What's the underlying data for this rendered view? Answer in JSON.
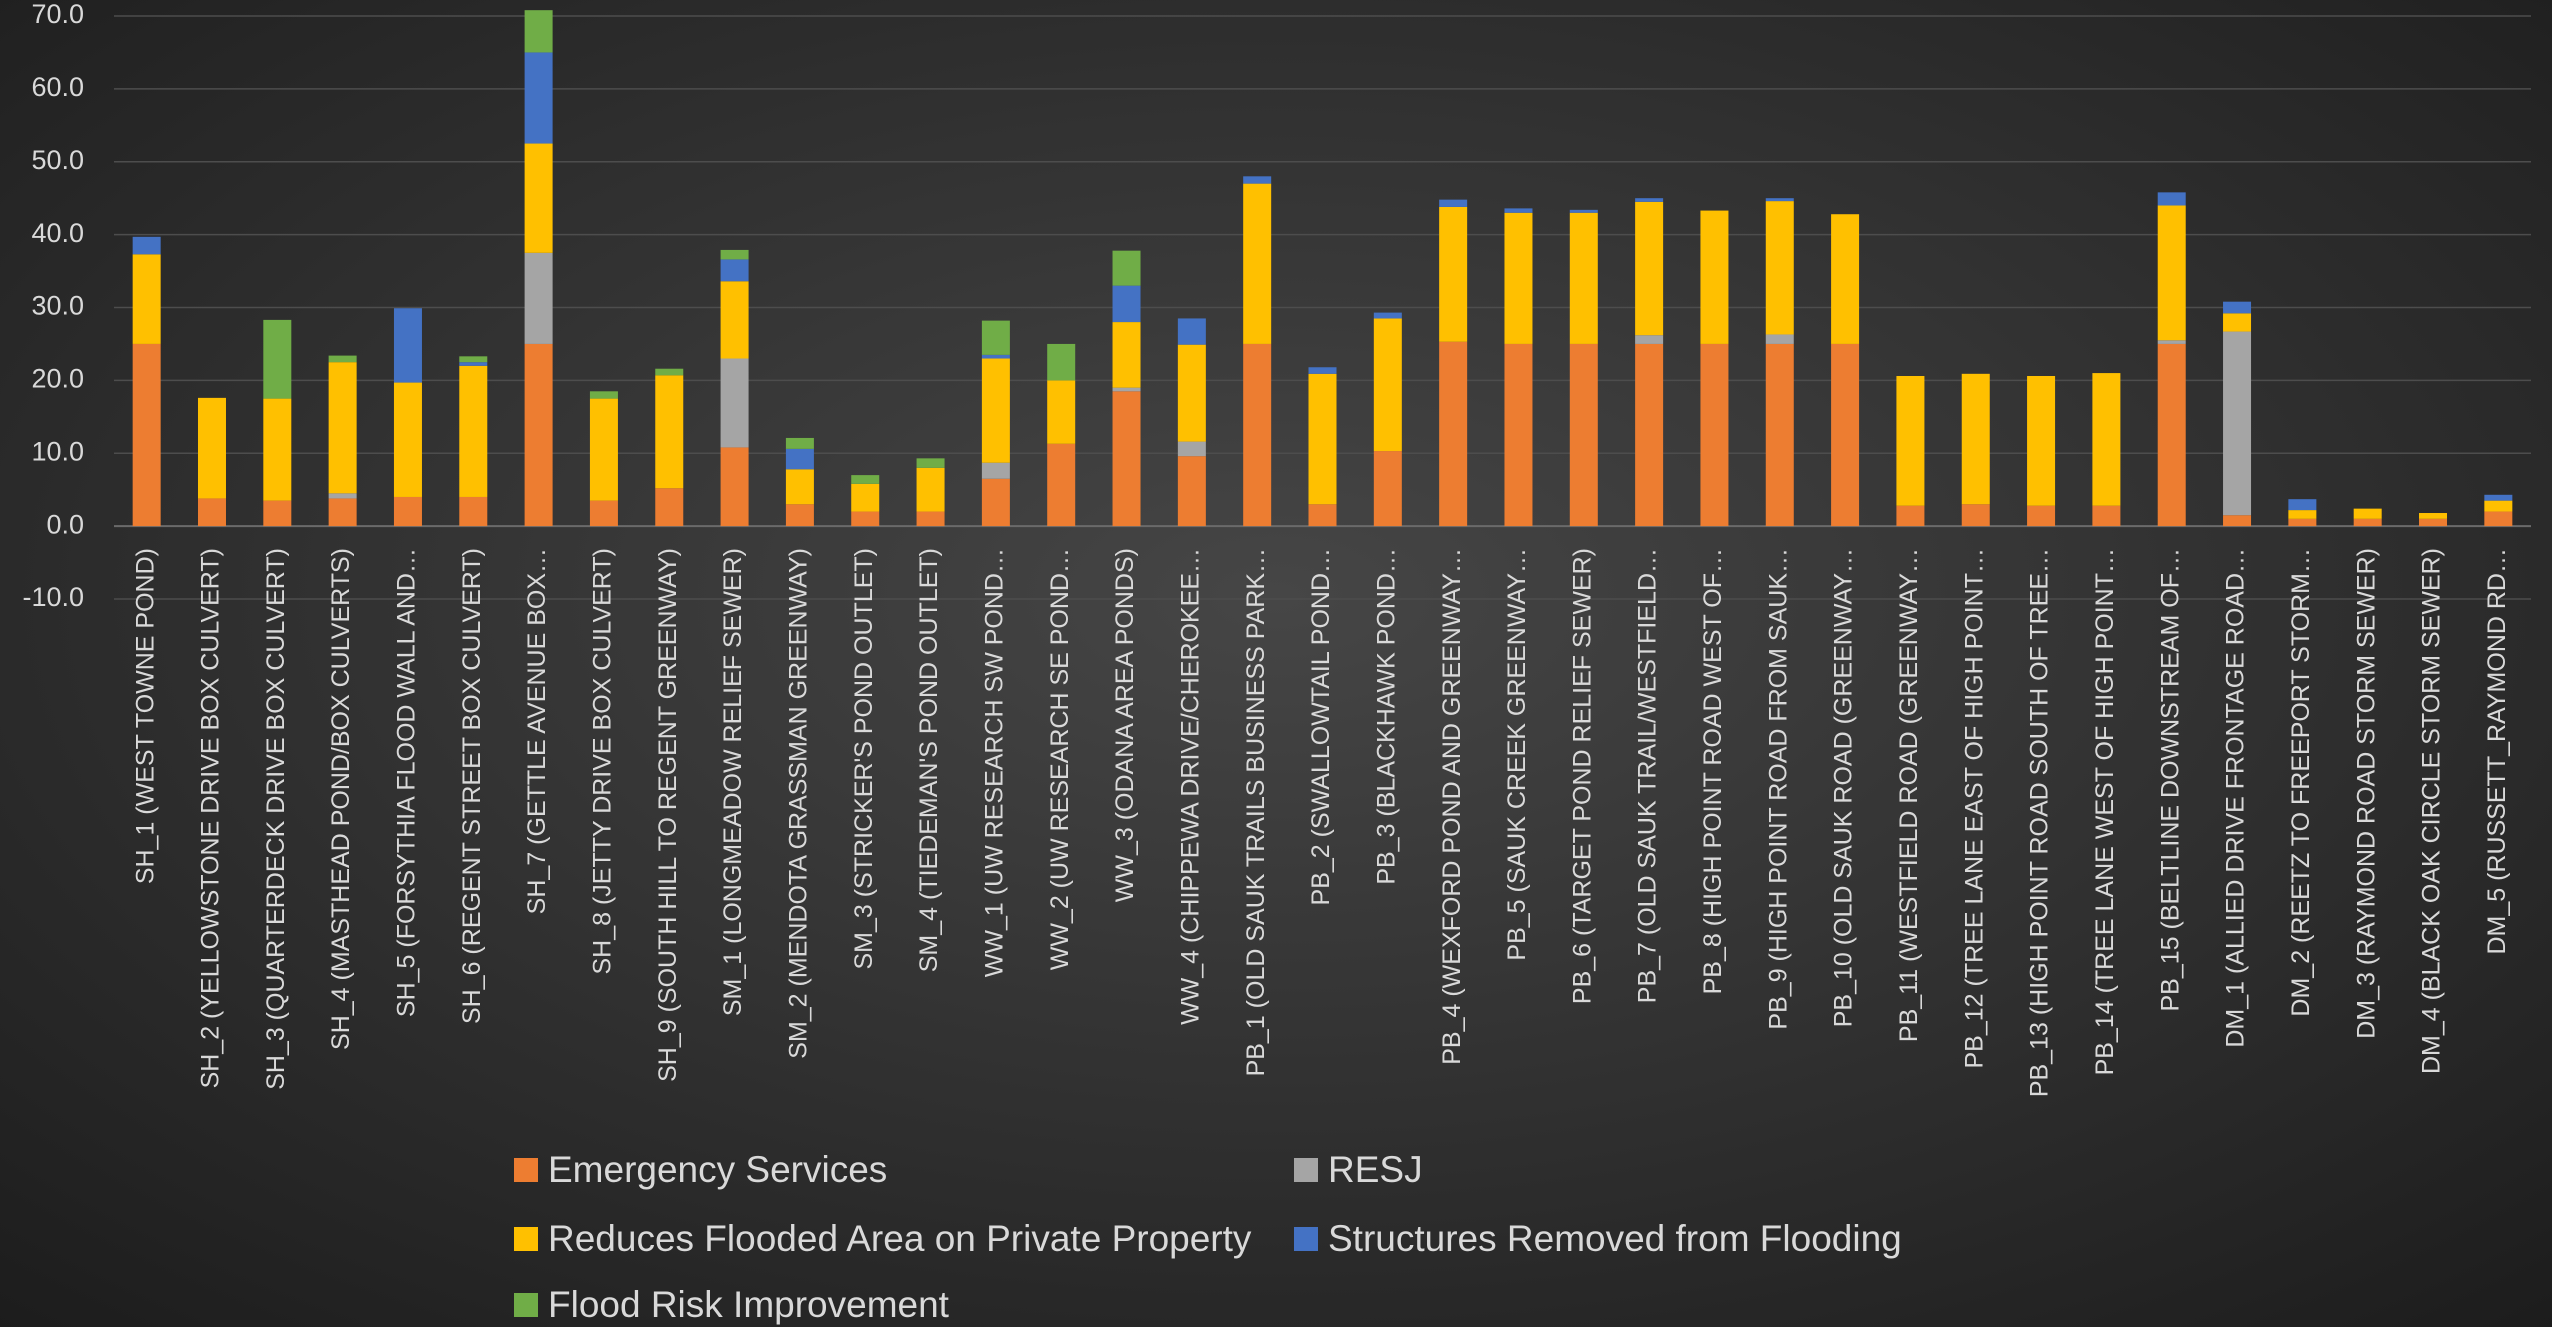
{
  "chart_data": {
    "type": "stacked_bar",
    "categories": [
      "SH_1  (WEST TOWNE POND)",
      "SH_2  (YELLOWSTONE DRIVE BOX CULVERT)",
      "SH_3  (QUARTERDECK DRIVE BOX CULVERT)",
      "SH_4 (MASTHEAD POND/BOX CULVERTS)",
      "SH_5  (FORSYTHIA FLOOD WALL AND…",
      "SH_6  (REGENT STREET BOX CULVERT)",
      "SH_7  (GETTLE AVENUE BOX…",
      "SH_8  (JETTY DRIVE BOX CULVERT)",
      "SH_9 (SOUTH HILL TO REGENT GREENWAY)",
      "SM_1  (LONGMEADOW RELIEF SEWER)",
      "SM_2  (MENDOTA GRASSMAN GREENWAY)",
      "SM_3  (STRICKER'S POND OUTLET)",
      "SM_4  (TIEDEMAN'S POND OUTLET)",
      "WW_1 (UW RESEARCH SW POND…",
      "WW_2  (UW RESEARCH SE POND…",
      "WW_3  (ODANA AREA PONDS)",
      "WW_4 (CHIPPEWA DRIVE/CHEROKEE…",
      "PB_1 (OLD SAUK TRAILS BUSINESS PARK…",
      "PB_2  (SWALLOWTAIL POND…",
      "PB_3  (BLACKHAWK POND…",
      "PB_4  (WEXFORD POND AND GREENWAY…",
      "PB_5  (SAUK CREEK GREENWAY…",
      "PB_6  (TARGET POND RELIEF SEWER)",
      "PB_7  (OLD SAUK TRAIL/WESTFIELD…",
      "PB_8  (HIGH POINT ROAD WEST OF…",
      "PB_9 (HIGH POINT ROAD FROM SAUK…",
      "PB_10 (OLD SAUK ROAD (GREENWAY…",
      "PB_11 (WESTFIELD ROAD (GREENWAY…",
      "PB_12 (TREE LANE EAST OF HIGH POINT…",
      "PB_13  (HIGH POINT ROAD SOUTH OF TREE…",
      "PB_14  (TREE LANE WEST OF HIGH POINT…",
      "PB_15 (BELTLINE DOWNSTREAM OF…",
      "DM_1 (ALLIED DRIVE FRONTAGE ROAD…",
      "DM_2  (REETZ TO FREEPORT STORM…",
      "DM_3  (RAYMOND ROAD STORM SEWER)",
      "DM_4  (BLACK OAK CIRCLE STORM SEWER)",
      "DM_5  (RUSSETT_RAYMOND RD…"
    ],
    "series": [
      {
        "name": "Emergency Services",
        "color": "#ed7d31",
        "values": [
          25,
          3.8,
          3.5,
          3.8,
          4,
          4,
          25,
          3.5,
          5.2,
          10.8,
          3,
          2,
          2,
          6.5,
          11.3,
          18.5,
          9.6,
          25,
          3,
          10.3,
          25.3,
          25,
          25,
          25,
          25,
          25,
          25,
          2.8,
          3,
          2.8,
          2.8,
          25,
          1.5,
          1,
          1,
          1,
          2
        ]
      },
      {
        "name": "RESJ",
        "color": "#a5a5a5",
        "values": [
          0,
          0,
          0,
          0.7,
          0,
          0,
          12.5,
          0,
          0,
          12.2,
          0,
          0,
          0,
          2.2,
          0,
          0.5,
          2,
          0,
          0,
          0,
          0,
          0,
          0,
          1.2,
          0,
          1.3,
          0,
          0,
          0,
          0,
          0,
          0.5,
          25.2,
          0,
          0,
          0,
          0
        ]
      },
      {
        "name": "Reduces Flooded Area on Private Property",
        "color": "#ffc000",
        "values": [
          12.3,
          13.8,
          14,
          18,
          15.7,
          18,
          15,
          14,
          15.5,
          10.6,
          4.8,
          3.8,
          6,
          14.3,
          8.7,
          9,
          13.3,
          22,
          17.9,
          18.2,
          18.5,
          18,
          18,
          18.3,
          18.3,
          18.3,
          17.8,
          17.8,
          17.9,
          17.8,
          18.2,
          18.5,
          2.5,
          1.2,
          1.4,
          0.8,
          1.5
        ]
      },
      {
        "name": "Structures Removed from Flooding",
        "color": "#4472c4",
        "values": [
          2.4,
          0,
          0,
          0,
          10.2,
          0.5,
          12.5,
          0,
          0,
          3,
          2.8,
          0,
          0,
          0.5,
          0,
          5,
          3.6,
          1,
          0.9,
          0.8,
          1,
          0.6,
          0.4,
          0.5,
          0,
          0.4,
          0,
          0,
          0,
          0,
          0,
          1.8,
          1.6,
          1.5,
          0,
          0,
          0.8
        ]
      },
      {
        "name": "Flood Risk Improvement",
        "color": "#70ad47",
        "values": [
          0,
          0,
          10.8,
          0.9,
          0,
          0.8,
          5.8,
          1,
          0.9,
          1.3,
          1.5,
          1.2,
          1.3,
          4.7,
          5,
          4.8,
          0,
          0,
          0,
          0,
          0,
          0,
          0,
          0,
          0,
          0,
          0,
          0,
          0,
          0,
          0,
          0,
          0,
          0,
          0,
          0,
          0
        ]
      }
    ],
    "ylim": [
      -10,
      70
    ],
    "yticks": [
      {
        "value": -10,
        "label": "-10.0"
      },
      {
        "value": 0,
        "label": "0.0"
      },
      {
        "value": 10,
        "label": "10.0"
      },
      {
        "value": 20,
        "label": "20.0"
      },
      {
        "value": 30,
        "label": "30.0"
      },
      {
        "value": 40,
        "label": "40.0"
      },
      {
        "value": 50,
        "label": "50.0"
      },
      {
        "value": 60,
        "label": "60.0"
      },
      {
        "value": 70,
        "label": "70.0"
      }
    ],
    "grid": true,
    "legend": "bottom"
  }
}
